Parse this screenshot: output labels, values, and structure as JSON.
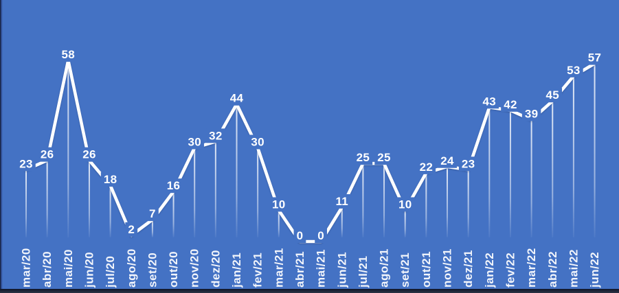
{
  "chart_data": {
    "type": "line",
    "title": "",
    "xlabel": "",
    "ylabel": "",
    "legend_position": "none",
    "grid": false,
    "data_labels_visible": true,
    "droplines": true,
    "ylim": [
      0,
      58
    ],
    "categories": [
      "mar/20",
      "abr/20",
      "mai/20",
      "jun/20",
      "jul/20",
      "ago/20",
      "set/20",
      "out/20",
      "nov/20",
      "dez/20",
      "jan/21",
      "fev/21",
      "mar/21",
      "abr/21",
      "mai/21",
      "jun/21",
      "jul/21",
      "ago/21",
      "set/21",
      "out/21",
      "nov/21",
      "dez/21",
      "jan/22",
      "fev/22",
      "mar/22",
      "abr/22",
      "mai/22",
      "jun/22"
    ],
    "values": [
      23,
      26,
      58,
      26,
      18,
      2,
      7,
      16,
      30,
      32,
      44,
      30,
      10,
      0,
      0,
      11,
      25,
      25,
      10,
      22,
      24,
      23,
      43,
      42,
      39,
      45,
      53,
      57
    ]
  },
  "colors": {
    "background": "#4472C4",
    "line": "#FFFFFF",
    "data_label": "#FFFFFF",
    "axis_label": "#F2F5FB",
    "dropline_top": "rgba(255,255,255,0.85)",
    "dropline_mid": "rgba(255,255,255,0.45)",
    "dropline_bottom": "rgba(255,255,255,0.05)",
    "edge_dark": "#10152a",
    "edge_dark2": "#2c3345"
  }
}
